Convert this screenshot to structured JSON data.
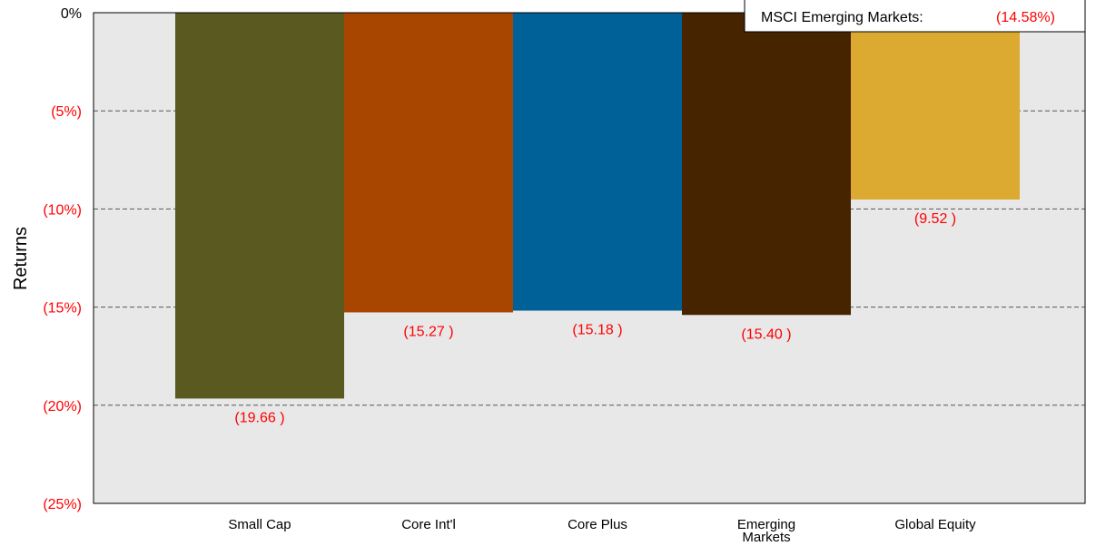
{
  "chart_data": {
    "type": "bar",
    "ylabel": "Returns",
    "xlabel": "",
    "title": "",
    "ylim": [
      -25,
      0
    ],
    "yticks": [
      {
        "value": 0,
        "label": "0%"
      },
      {
        "value": -5,
        "label": "(5%)"
      },
      {
        "value": -10,
        "label": "(10%)"
      },
      {
        "value": -15,
        "label": "(15%)"
      },
      {
        "value": -20,
        "label": "(20%)"
      },
      {
        "value": -25,
        "label": "(25%)"
      }
    ],
    "grid": true,
    "bars": [
      {
        "category": "Small Cap",
        "value": -19.66,
        "label": "(19.66 )",
        "color": "#5a5a20"
      },
      {
        "category": "Core Int'l",
        "value": -15.27,
        "label": "(15.27 )",
        "color": "#a84600"
      },
      {
        "category": "Core Plus",
        "value": -15.18,
        "label": "(15.18 )",
        "color": "#006199"
      },
      {
        "category": "Emerging Markets",
        "value": -15.4,
        "label": "(15.40 )",
        "color": "#472400"
      },
      {
        "category": "Global Equity",
        "value": -9.52,
        "label": "(9.52 )",
        "color": "#dcaa30"
      }
    ],
    "legend": {
      "placement": "top-right",
      "entries": [
        {
          "label": "MSCI Emerging Markets:",
          "value": "(14.58%)"
        }
      ]
    },
    "colors": {
      "plot_background": "#e8e8e8",
      "negative_text": "#ff0000",
      "axis_text": "#000000"
    }
  }
}
